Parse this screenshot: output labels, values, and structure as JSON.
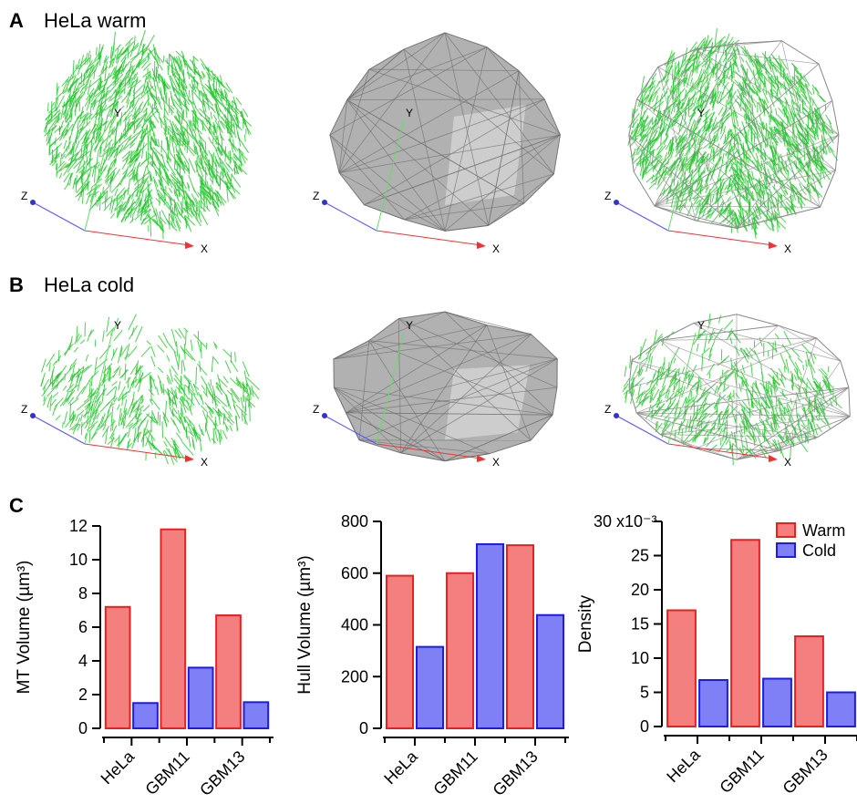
{
  "panels": {
    "a": {
      "letter": "A",
      "title": "HeLa warm"
    },
    "b": {
      "letter": "B",
      "title": "HeLa cold"
    },
    "c": {
      "letter": "C"
    }
  },
  "axis_labels": {
    "x": "X",
    "y": "Y",
    "z": "Z"
  },
  "chart_data": [
    {
      "type": "bar",
      "ylabel": "MT Volume (µm³)",
      "categories": [
        "HeLa",
        "GBM11",
        "GBM13"
      ],
      "series": [
        {
          "color": "#f47f7f",
          "edge_color": "#e8201e",
          "values": [
            7.2,
            11.8,
            6.7
          ]
        },
        {
          "color": "#8080f6",
          "edge_color": "#1c1ce6",
          "values": [
            1.5,
            3.6,
            1.55
          ]
        }
      ],
      "ylim": [
        0,
        12
      ],
      "yticks": [
        0,
        2,
        4,
        6,
        8,
        10,
        12
      ]
    },
    {
      "type": "bar",
      "ylabel": "Hull Volume (µm³)",
      "categories": [
        "HeLa",
        "GBM11",
        "GBM13"
      ],
      "series": [
        {
          "color": "#f47f7f",
          "edge_color": "#e8201e",
          "values": [
            590,
            600,
            708
          ]
        },
        {
          "color": "#8080f6",
          "edge_color": "#1c1ce6",
          "values": [
            315,
            712,
            438
          ]
        }
      ],
      "ylim": [
        0,
        800
      ],
      "yticks": [
        0,
        200,
        400,
        600,
        800
      ]
    },
    {
      "type": "bar",
      "ylabel": "Density",
      "y_multiplier": "x10⁻³",
      "categories": [
        "HeLa",
        "GBM11",
        "GBM13"
      ],
      "series": [
        {
          "name": "Warm",
          "color": "#f47f7f",
          "edge_color": "#e8201e",
          "values": [
            17,
            27.3,
            13.2
          ]
        },
        {
          "name": "Cold",
          "color": "#8080f6",
          "edge_color": "#1c1ce6",
          "values": [
            6.8,
            7.0,
            5.0
          ]
        }
      ],
      "ylim": [
        0,
        30
      ],
      "yticks": [
        0,
        5,
        10,
        15,
        20,
        25,
        30
      ],
      "legend": "upper right"
    }
  ]
}
